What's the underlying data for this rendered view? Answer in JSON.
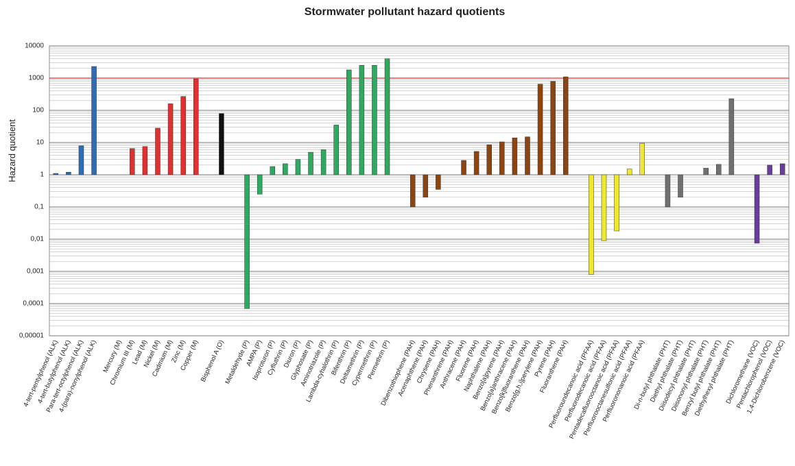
{
  "chart_data": {
    "type": "bar",
    "title": "Stormwater pollutant hazard quotients",
    "y_label": "Hazard quotient",
    "log_scale": true,
    "base": 1,
    "grid": true,
    "minor_grid": true,
    "ylim": [
      1e-05,
      10000
    ],
    "yticks": [
      {
        "value": 1e-05,
        "label": "0,00001"
      },
      {
        "value": 0.0001,
        "label": "0,0001"
      },
      {
        "value": 0.001,
        "label": "0,001"
      },
      {
        "value": 0.01,
        "label": "0,01"
      },
      {
        "value": 0.1,
        "label": "0,1"
      },
      1,
      10,
      100,
      1000,
      10000
    ],
    "threshold": 1000,
    "threshold_color": "#e83030",
    "categories": [
      "4-tert-pentylphenol (ALK)",
      "4-tert-butylphenol (ALK)",
      "Para-tert-octylphenol (ALK)",
      "4-(para)-nonylphenol (ALK)",
      null,
      "Mercury (M)",
      "Chromium III (M)",
      "Lead (M)",
      "Nickel (M)",
      "Cadmium (M)",
      "Zinc (M)",
      "Copper (M)",
      null,
      "Bisphenol A (O)",
      null,
      "Metaldehyde (P)",
      "AMPA (P)",
      "Isoproturon (P)",
      "Cyfluthrin (P)",
      "Diuron (P)",
      "Glyphosate (P)",
      "Aminotriazole (P)",
      "Lambda-cyhalothrin (P)",
      "Bifenthrin (P)",
      "Deltamethrin (P)",
      "Cypermethrin (P)",
      "Permethrin (P)",
      null,
      "Dibenzothiophene (PAH)",
      "Acenaphthene (PAH)",
      "Chrysene (PAH)",
      "Phenanthrene (PAH)",
      "Anthracene (PAH)",
      "Fluorene (PAH)",
      "Naphthalene (PAH)",
      "Benzo[a]pyrene (PAH)",
      "Benzo[a]anthracene (PAH)",
      "Benzo[k]fluoranthene (PAH)",
      "Benzo[g,h,i]perylene (PAH)",
      "Pyrene (PAH)",
      "Fluoranthene (PAH)",
      null,
      "Perfluoroundecanoic acid  (PFAA)",
      "Perfluorodecanoic acid (PFAA)",
      "Pentadecafluorooctanoic acid (PFAA)",
      "Perfluorooctanesulfonic acid (PFAA)",
      "Perfluorononanoic acid (PFAA)",
      null,
      "Di-n-butyl phthalate (PHT)",
      "Diethyl phthalate (PHT)",
      "Diisodecyl phthalate (PHT)",
      "Diisononyl phthalate (PHT)",
      "Benzyl butyl phthalate (PHT)",
      "Diethylhexyl phthalate (PHT)",
      null,
      "Dichloromethane (VOC)",
      "Pentachlorophenol (VOC)",
      "1,4-Dichlorobenzene (VOC)"
    ],
    "values": [
      1.1,
      1.2,
      8,
      2300,
      null,
      1,
      6.5,
      7.5,
      28,
      160,
      270,
      950,
      null,
      80,
      null,
      7e-05,
      0.25,
      1.8,
      2.2,
      3,
      5,
      6,
      35,
      1800,
      2500,
      2500,
      4000,
      null,
      0.1,
      0.2,
      0.35,
      1,
      2.8,
      5.3,
      8.5,
      10.5,
      14,
      15,
      650,
      800,
      1100,
      null,
      0.0008,
      0.009,
      0.018,
      1.5,
      9.5,
      null,
      0.1,
      0.2,
      1,
      1.6,
      2.1,
      230,
      null,
      0.0075,
      2,
      2.2
    ],
    "colors": [
      "#2e6db4",
      "#2e6db4",
      "#2e6db4",
      "#2e6db4",
      null,
      "#e03030",
      "#e03030",
      "#e03030",
      "#e03030",
      "#e03030",
      "#e03030",
      "#e03030",
      null,
      "#111111",
      null,
      "#2eaa60",
      "#2eaa60",
      "#2eaa60",
      "#2eaa60",
      "#2eaa60",
      "#2eaa60",
      "#2eaa60",
      "#2eaa60",
      "#2eaa60",
      "#2eaa60",
      "#2eaa60",
      "#2eaa60",
      null,
      "#8b4513",
      "#8b4513",
      "#8b4513",
      "#8b4513",
      "#8b4513",
      "#8b4513",
      "#8b4513",
      "#8b4513",
      "#8b4513",
      "#8b4513",
      "#8b4513",
      "#8b4513",
      "#8b4513",
      null,
      "#f0e830",
      "#f0e830",
      "#f0e830",
      "#f0e830",
      "#f0e830",
      null,
      "#707070",
      "#707070",
      "#707070",
      "#707070",
      "#707070",
      "#707070",
      null,
      "#6a3d9a",
      "#6a3d9a",
      "#6a3d9a"
    ]
  }
}
